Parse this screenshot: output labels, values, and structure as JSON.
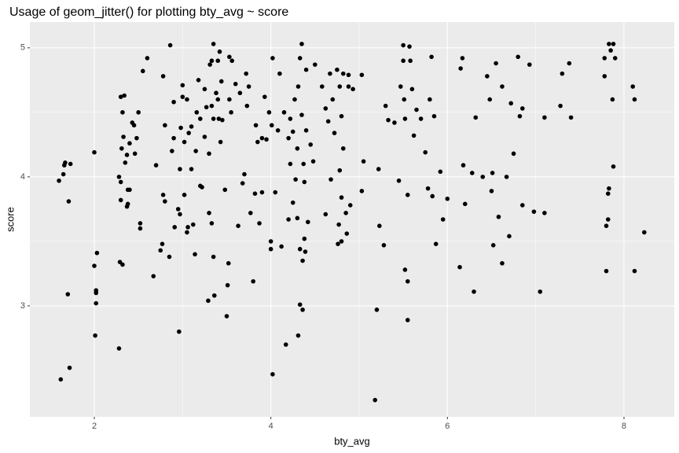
{
  "chart_data": {
    "type": "scatter",
    "title": "Usage of geom_jitter() for plotting bty_avg ~ score",
    "x_label": "bty_avg",
    "y_label": "score",
    "xlim": [
      1.27,
      8.57
    ],
    "ylim": [
      2.14,
      5.2
    ],
    "xticks": [
      2,
      4,
      6,
      8
    ],
    "yticks": [
      3,
      4,
      5
    ],
    "grid": true,
    "color": "#000000",
    "x": [
      1.62,
      1.72,
      1.6,
      1.65,
      1.66,
      1.67,
      1.73,
      1.71,
      1.7,
      2.0,
      2.0,
      2.03,
      2.02,
      2.02,
      2.02,
      2.01,
      2.28,
      2.29,
      2.32,
      2.3,
      2.3,
      2.28,
      2.31,
      2.33,
      2.32,
      2.3,
      2.34,
      2.35,
      2.37,
      2.38,
      2.38,
      2.4,
      2.37,
      2.4,
      2.43,
      2.45,
      2.48,
      2.5,
      2.46,
      2.52,
      2.52,
      2.55,
      2.6,
      2.67,
      2.7,
      2.75,
      2.77,
      2.78,
      2.8,
      2.8,
      2.78,
      2.86,
      2.85,
      2.88,
      2.9,
      2.9,
      2.91,
      2.95,
      2.96,
      2.97,
      2.97,
      2.98,
      3.0,
      3.0,
      3.02,
      3.02,
      3.05,
      3.05,
      3.06,
      3.07,
      3.1,
      3.1,
      3.12,
      3.14,
      3.15,
      3.16,
      3.18,
      3.2,
      3.2,
      3.22,
      3.25,
      3.25,
      3.27,
      3.29,
      3.3,
      3.3,
      3.31,
      3.33,
      3.33,
      3.35,
      3.33,
      3.35,
      3.35,
      3.36,
      3.38,
      3.4,
      3.4,
      3.41,
      3.42,
      3.43,
      3.44,
      3.45,
      3.48,
      3.5,
      3.51,
      3.52,
      3.53,
      3.55,
      3.53,
      3.56,
      3.6,
      3.63,
      3.65,
      3.68,
      3.7,
      3.72,
      3.73,
      3.75,
      3.77,
      3.8,
      3.82,
      3.83,
      3.85,
      3.87,
      3.9,
      3.9,
      3.93,
      3.95,
      3.98,
      4.0,
      4.0,
      4.01,
      4.02,
      4.02,
      4.05,
      4.08,
      4.1,
      4.12,
      4.15,
      4.17,
      4.2,
      4.2,
      4.22,
      4.22,
      4.25,
      4.25,
      4.27,
      4.28,
      4.3,
      4.3,
      4.31,
      4.31,
      4.33,
      4.33,
      4.33,
      4.35,
      4.35,
      4.36,
      4.36,
      4.37,
      4.38,
      4.38,
      4.39,
      4.4,
      4.4,
      4.42,
      4.45,
      4.48,
      4.5,
      4.58,
      4.62,
      4.62,
      4.65,
      4.67,
      4.68,
      4.7,
      4.72,
      4.75,
      4.76,
      4.77,
      4.78,
      4.78,
      4.8,
      4.8,
      4.8,
      4.82,
      4.82,
      4.85,
      4.86,
      4.88,
      4.88,
      4.9,
      4.93,
      5.03,
      5.03,
      5.05,
      5.18,
      5.2,
      5.22,
      5.23,
      5.28,
      5.3,
      5.33,
      5.4,
      5.45,
      5.47,
      5.5,
      5.5,
      5.51,
      5.52,
      5.52,
      5.55,
      5.55,
      5.55,
      5.57,
      5.58,
      5.6,
      5.62,
      5.65,
      5.7,
      5.75,
      5.78,
      5.8,
      5.82,
      5.83,
      5.85,
      5.87,
      5.92,
      5.95,
      6.0,
      6.14,
      6.15,
      6.17,
      6.18,
      6.2,
      6.28,
      6.3,
      6.32,
      6.4,
      6.45,
      6.48,
      6.5,
      6.51,
      6.52,
      6.55,
      6.58,
      6.62,
      6.62,
      6.67,
      6.7,
      6.72,
      6.75,
      6.8,
      6.82,
      6.85,
      6.85,
      6.93,
      6.98,
      7.05,
      7.1,
      7.1,
      7.28,
      7.3,
      7.38,
      7.4,
      7.78,
      7.78,
      7.8,
      7.8,
      7.82,
      7.82,
      7.83,
      7.83,
      7.85,
      7.87,
      7.88,
      7.88,
      7.9,
      8.1,
      8.12,
      8.12,
      8.23
    ],
    "values": [
      2.43,
      2.52,
      3.97,
      4.02,
      4.09,
      4.11,
      4.1,
      3.81,
      3.09,
      4.19,
      3.31,
      3.41,
      3.12,
      3.1,
      3.02,
      2.77,
      2.67,
      3.34,
      3.32,
      3.82,
      3.96,
      4.0,
      4.22,
      4.31,
      4.5,
      4.62,
      4.63,
      4.11,
      3.77,
      3.79,
      3.9,
      3.9,
      4.17,
      4.26,
      4.42,
      4.4,
      4.3,
      4.5,
      4.18,
      3.6,
      3.64,
      4.82,
      4.92,
      3.23,
      4.09,
      3.43,
      3.48,
      3.86,
      3.81,
      4.4,
      4.78,
      5.02,
      3.38,
      4.2,
      4.58,
      4.3,
      3.61,
      3.75,
      2.8,
      3.71,
      4.06,
      4.38,
      4.71,
      4.62,
      3.86,
      4.27,
      3.57,
      4.6,
      3.61,
      4.34,
      4.39,
      4.06,
      3.63,
      3.4,
      4.2,
      4.5,
      4.75,
      3.93,
      4.45,
      3.92,
      4.68,
      4.31,
      4.54,
      3.04,
      3.72,
      4.18,
      4.87,
      4.9,
      4.55,
      4.45,
      3.64,
      5.03,
      3.38,
      3.08,
      4.65,
      4.9,
      4.6,
      4.45,
      4.97,
      4.27,
      4.74,
      4.44,
      3.9,
      2.92,
      3.16,
      3.33,
      4.6,
      4.5,
      4.93,
      4.9,
      4.72,
      3.62,
      4.65,
      3.95,
      4.02,
      4.8,
      4.55,
      4.7,
      3.72,
      3.19,
      3.87,
      4.4,
      4.27,
      3.64,
      4.3,
      3.88,
      4.62,
      4.29,
      4.5,
      3.5,
      3.44,
      4.4,
      4.92,
      2.47,
      3.88,
      4.36,
      4.8,
      3.46,
      4.5,
      2.7,
      3.67,
      4.3,
      4.45,
      4.1,
      3.8,
      4.35,
      4.6,
      3.98,
      3.68,
      4.22,
      4.7,
      2.77,
      3.44,
      4.92,
      3.01,
      5.03,
      4.48,
      3.35,
      2.97,
      4.1,
      3.52,
      3.96,
      3.42,
      4.36,
      4.83,
      3.65,
      4.25,
      4.12,
      4.87,
      4.7,
      4.53,
      3.71,
      4.43,
      4.8,
      3.98,
      4.6,
      4.34,
      4.83,
      3.48,
      3.63,
      4.7,
      4.05,
      3.5,
      3.84,
      4.47,
      4.8,
      4.22,
      3.72,
      3.56,
      4.7,
      4.79,
      3.78,
      4.68,
      3.89,
      4.79,
      4.12,
      2.27,
      2.97,
      4.06,
      3.62,
      3.47,
      4.55,
      4.44,
      4.42,
      3.97,
      4.7,
      4.9,
      5.02,
      4.6,
      4.45,
      3.28,
      2.89,
      3.19,
      3.86,
      5.01,
      4.9,
      4.68,
      4.32,
      4.52,
      4.45,
      4.19,
      3.91,
      4.6,
      4.93,
      3.85,
      4.47,
      3.48,
      4.04,
      3.67,
      3.83,
      3.3,
      4.84,
      4.92,
      4.09,
      3.79,
      4.03,
      3.11,
      4.46,
      4.0,
      4.78,
      4.6,
      3.89,
      4.03,
      3.47,
      4.88,
      3.69,
      4.7,
      3.33,
      4.0,
      3.54,
      4.57,
      4.18,
      4.93,
      4.47,
      3.78,
      4.53,
      4.87,
      3.73,
      3.11,
      4.46,
      3.72,
      4.55,
      4.8,
      4.88,
      4.46,
      4.78,
      4.92,
      3.27,
      3.62,
      3.67,
      3.87,
      3.91,
      5.03,
      4.98,
      4.6,
      4.08,
      5.03,
      4.92,
      4.7,
      3.27,
      4.6,
      3.57
    ]
  }
}
